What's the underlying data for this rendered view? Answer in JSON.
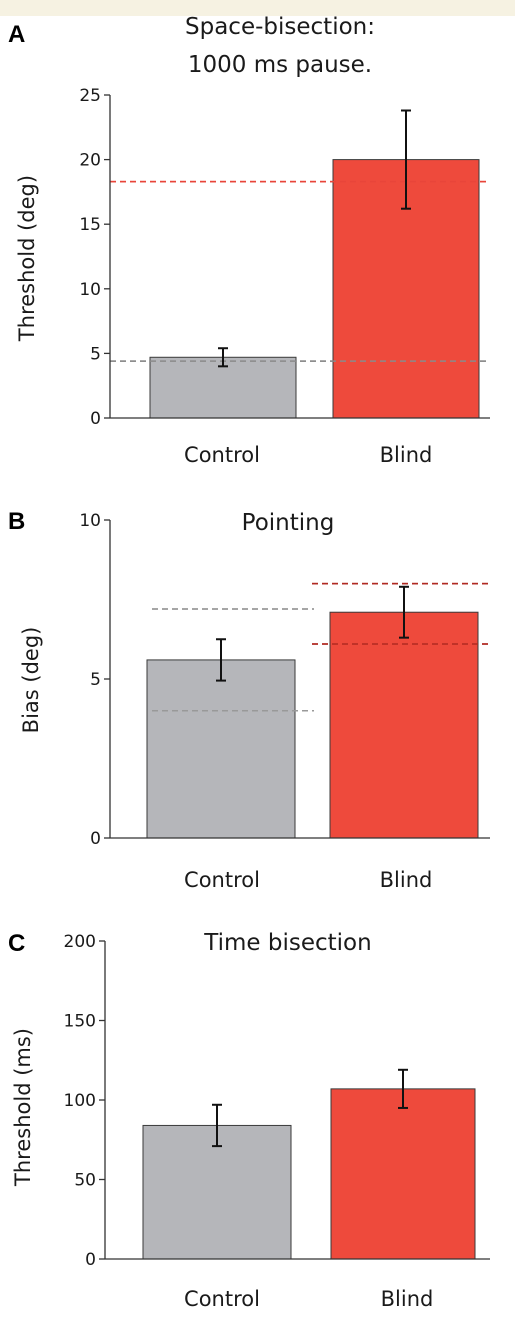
{
  "chart_data": [
    {
      "type": "bar",
      "panel_letter": "A",
      "title_lines": [
        "Space-bisection:",
        "1000 ms pause."
      ],
      "xlabel": "",
      "ylabel": "Threshold (deg)",
      "ylim": [
        0,
        25
      ],
      "yticks": [
        0,
        5,
        10,
        15,
        20,
        25
      ],
      "categories": [
        "Control",
        "Blind"
      ],
      "values": [
        4.7,
        20.0
      ],
      "errors": [
        0.7,
        3.8
      ],
      "colors": [
        "#b5b6ba",
        "#ee4a3c"
      ],
      "reference_lines": [
        {
          "y": 4.4,
          "color": "#8a8a8a",
          "span": "full"
        },
        {
          "y": 18.3,
          "color": "#e8453a",
          "span": "full"
        }
      ],
      "grid": false
    },
    {
      "type": "bar",
      "panel_letter": "B",
      "title_lines": [
        "Pointing"
      ],
      "xlabel": "",
      "ylabel": "Bias (deg)",
      "ylim": [
        0,
        10
      ],
      "yticks": [
        0,
        5,
        10
      ],
      "categories": [
        "Control",
        "Blind"
      ],
      "values": [
        5.6,
        7.1
      ],
      "errors": [
        0.65,
        0.8
      ],
      "colors": [
        "#b5b6ba",
        "#ee4a3c"
      ],
      "reference_lines": [
        {
          "y": 7.2,
          "color": "#999999",
          "span": "control"
        },
        {
          "y": 4.0,
          "color": "#999999",
          "span": "control"
        },
        {
          "y": 8.0,
          "color": "#b02a22",
          "span": "blind"
        },
        {
          "y": 6.1,
          "color": "#b02a22",
          "span": "blind"
        }
      ],
      "grid": false
    },
    {
      "type": "bar",
      "panel_letter": "C",
      "title_lines": [
        "Time bisection"
      ],
      "xlabel": "",
      "ylabel": "Threshold (ms)",
      "ylim": [
        0,
        200
      ],
      "yticks": [
        0,
        50,
        100,
        150,
        200
      ],
      "categories": [
        "Control",
        "Blind"
      ],
      "values": [
        84,
        107
      ],
      "errors": [
        13,
        12
      ],
      "colors": [
        "#b5b6ba",
        "#ee4a3c"
      ],
      "reference_lines": [],
      "grid": false
    }
  ]
}
